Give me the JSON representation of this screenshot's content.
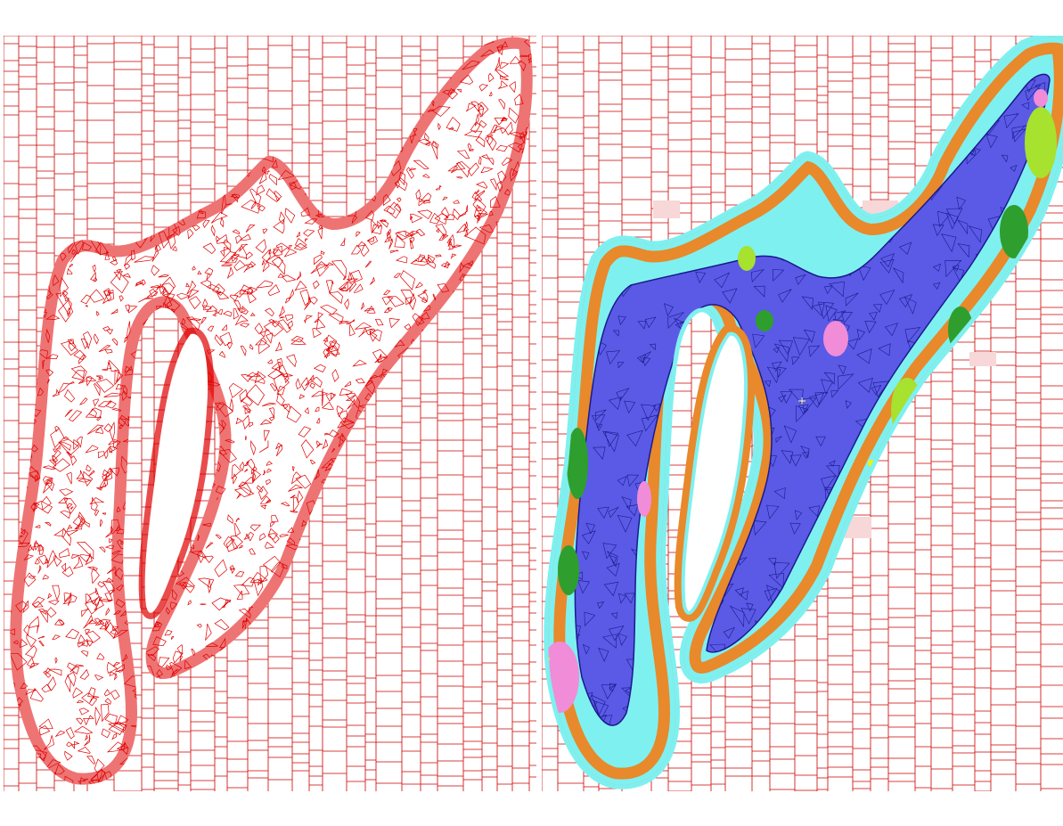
{
  "figure": {
    "panels": [
      {
        "id": "left",
        "description_label": "mesh-wireframe",
        "line_color": "#e00000"
      },
      {
        "id": "right",
        "description_label": "classified-mesh",
        "line_color": "#c80000"
      }
    ],
    "colors": {
      "grid_line": "#cc0000",
      "mesh_line": "#e00000",
      "class_deep": "#5a5ae6",
      "class_deep_edge": "#1a1a8c",
      "class_shallow": "#7ff0f0",
      "class_orange": "#e8892b",
      "class_green": "#2e9e2e",
      "class_lightgreen": "#a6e22e",
      "class_pink": "#f08cd8",
      "class_paleblush": "#f7d7d7",
      "class_yellow": "#f2f20a"
    }
  }
}
